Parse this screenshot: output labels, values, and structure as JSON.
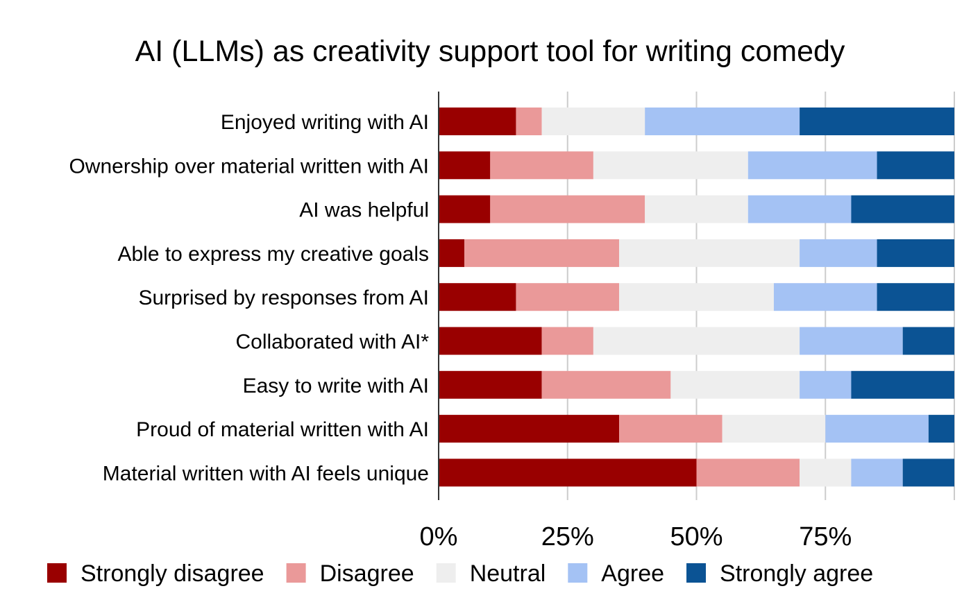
{
  "chart_data": {
    "type": "bar",
    "orientation": "horizontal",
    "stacked": true,
    "normalized_percent": true,
    "title": "AI (LLMs) as creativity support tool for writing comedy",
    "xlabel": "",
    "ylabel": "",
    "xlim": [
      0,
      100
    ],
    "x_ticks": [
      0,
      25,
      50,
      75,
      100
    ],
    "x_tick_labels": [
      "0%",
      "25%",
      "50%",
      "75%",
      ""
    ],
    "grid": "vertical",
    "legend_position": "bottom",
    "categories": [
      "Enjoyed writing with AI",
      "Ownership over material written with AI",
      "AI was helpful",
      "Able to express my creative goals",
      "Surprised by responses from AI",
      "Collaborated with AI*",
      "Easy to write with AI",
      "Proud of material written with AI",
      "Material written with AI feels unique"
    ],
    "series": [
      {
        "name": "Strongly disagree",
        "color": "#990000",
        "values": [
          15,
          10,
          10,
          5,
          15,
          20,
          20,
          35,
          50
        ]
      },
      {
        "name": "Disagree",
        "color": "#ea9999",
        "values": [
          5,
          20,
          30,
          30,
          20,
          10,
          25,
          20,
          20
        ]
      },
      {
        "name": "Neutral",
        "color": "#eeeeee",
        "values": [
          20,
          30,
          20,
          35,
          30,
          40,
          25,
          20,
          10
        ]
      },
      {
        "name": "Agree",
        "color": "#a4c2f4",
        "values": [
          30,
          25,
          20,
          15,
          20,
          20,
          10,
          20,
          10
        ]
      },
      {
        "name": "Strongly agree",
        "color": "#0b5394",
        "values": [
          30,
          15,
          20,
          15,
          15,
          10,
          20,
          5,
          10
        ]
      }
    ]
  }
}
